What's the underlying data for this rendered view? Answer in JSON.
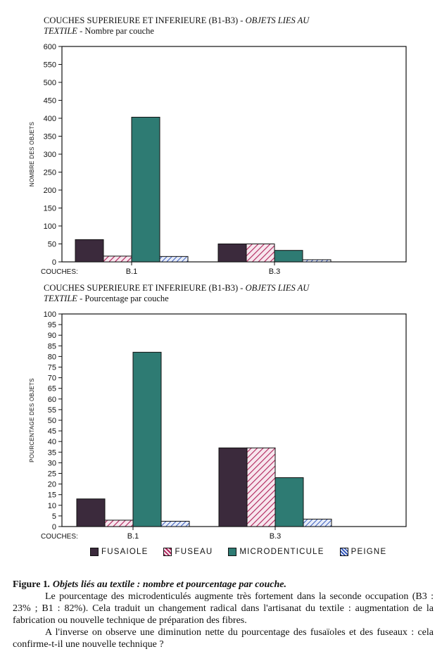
{
  "charts": [
    {
      "title_line1": "COUCHES SUPERIEURE ET INFERIEURE (B1-B3) - ",
      "title_line1_italic": "OBJETS LIES AU",
      "title_line2_italic": "TEXTILE",
      "title_line2": " - Nombre par couche",
      "ylabel": "NOMBRE DES OBJETS",
      "xlabel": "COUCHES:"
    },
    {
      "title_line1": "COUCHES SUPERIEURE ET INFERIEURE (B1-B3) - ",
      "title_line1_italic": "OBJETS LIES AU",
      "title_line2_italic": "TEXTILE",
      "title_line2": " - Pourcentage par couche",
      "ylabel": "POURCENTAGE DES OBJETS",
      "xlabel": "COUCHES:"
    }
  ],
  "chart_data": [
    {
      "type": "bar",
      "title": "COUCHES SUPERIEURE ET INFERIEURE (B1-B3) - OBJETS LIES AU TEXTILE - Nombre par couche",
      "categories": [
        "B.1",
        "B.3"
      ],
      "series": [
        {
          "name": "FUSAIOLE",
          "values": [
            62,
            50
          ]
        },
        {
          "name": "FUSEAU",
          "values": [
            16,
            50
          ]
        },
        {
          "name": "MICRODENTICULE",
          "values": [
            403,
            32
          ]
        },
        {
          "name": "PEIGNE",
          "values": [
            15,
            6
          ]
        }
      ],
      "ylabel": "NOMBRE DES OBJETS",
      "xlabel": "COUCHES:",
      "ylim": [
        0,
        600
      ],
      "yticks": [
        0,
        50,
        100,
        150,
        200,
        250,
        300,
        350,
        400,
        450,
        500,
        550,
        600
      ],
      "legend": "bottom"
    },
    {
      "type": "bar",
      "title": "COUCHES SUPERIEURE ET INFERIEURE (B1-B3) - OBJETS LIES AU TEXTILE - Pourcentage par couche",
      "categories": [
        "B.1",
        "B.3"
      ],
      "series": [
        {
          "name": "FUSAIOLE",
          "values": [
            13,
            37
          ]
        },
        {
          "name": "FUSEAU",
          "values": [
            3,
            37
          ]
        },
        {
          "name": "MICRODENTICULE",
          "values": [
            82,
            23
          ]
        },
        {
          "name": "PEIGNE",
          "values": [
            2.5,
            3.5
          ]
        }
      ],
      "ylabel": "POURCENTAGE DES OBJETS",
      "xlabel": "COUCHES:",
      "ylim": [
        0,
        100
      ],
      "yticks": [
        0,
        5,
        10,
        15,
        20,
        25,
        30,
        35,
        40,
        45,
        50,
        55,
        60,
        65,
        70,
        75,
        80,
        85,
        90,
        95,
        100
      ],
      "legend": "bottom"
    }
  ],
  "legend": [
    {
      "label": "FUSAIOLE",
      "icon": "solid-dark-purple",
      "color": "#3b2a3c"
    },
    {
      "label": "FUSEAU",
      "icon": "hatch-magenta",
      "color": "#b0235a"
    },
    {
      "label": "MICRODENTICULE",
      "icon": "solid-teal",
      "color": "#2e7b73"
    },
    {
      "label": "PEIGNE",
      "icon": "hatch-blue",
      "color": "#2a4fb8"
    }
  ],
  "caption": {
    "fig_label": "Figure 1",
    "fig_title": ". Objets liés au textile : nombre et pourcentage par couche.",
    "para1": "Le pourcentage des microdenticulés augmente très fortement dans la seconde occupation (B3 : 23% ; B1 : 82%). Cela traduit un changement radical dans l'artisanat du textile : augmentation de la fabrication ou nouvelle technique de préparation des fibres.",
    "para2": "A l'inverse on observe une diminution nette du pourcentage des fusaïoles et des fuseaux : cela confirme-t-il une nouvelle technique ?"
  }
}
